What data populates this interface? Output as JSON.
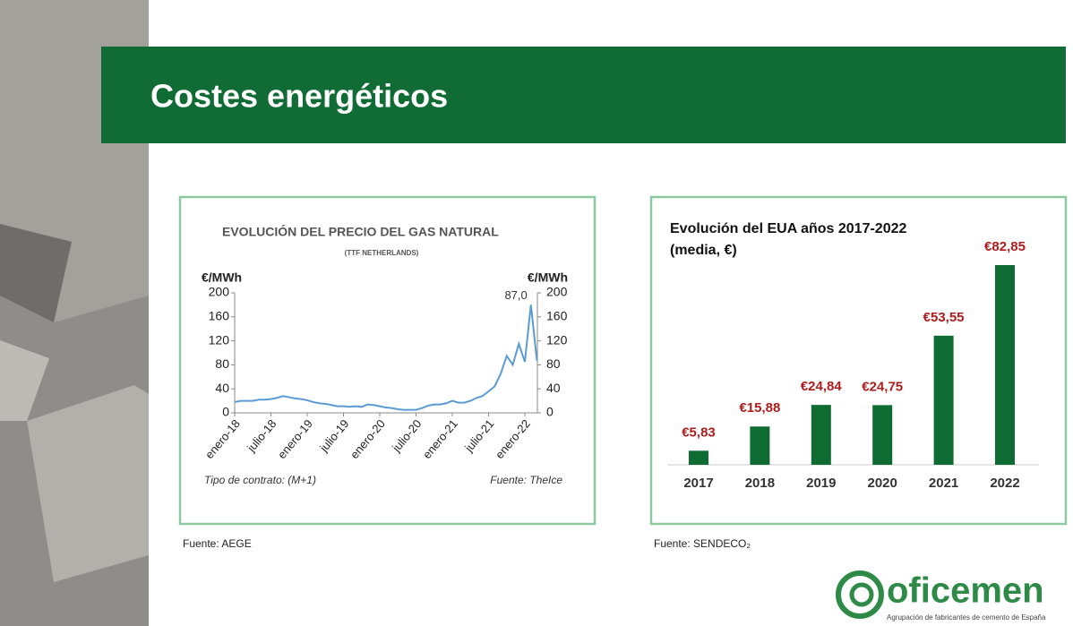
{
  "slide_title": "Costes energéticos",
  "chart_data": [
    {
      "type": "line",
      "title": "EVOLUCIÓN DEL PRECIO DEL GAS NATURAL",
      "subtitle": "(TTF NETHERLANDS)",
      "y_label": "€/MWh",
      "y2_label": "€/MWh",
      "categories": [
        "enero-18",
        null,
        null,
        null,
        null,
        null,
        "julio-18",
        null,
        null,
        null,
        null,
        null,
        "enero-19",
        null,
        null,
        null,
        null,
        null,
        "julio-19",
        null,
        null,
        null,
        null,
        null,
        "enero-20",
        null,
        null,
        null,
        null,
        null,
        "julio-20",
        null,
        null,
        null,
        null,
        null,
        "enero-21",
        null,
        null,
        null,
        null,
        null,
        "julio-21",
        null,
        null,
        null,
        null,
        null,
        "enero-22",
        null,
        null
      ],
      "series": [
        {
          "color": "#5b9bd5",
          "values": [
            18,
            20,
            20,
            20,
            22,
            22,
            23,
            25,
            28,
            26,
            24,
            23,
            21,
            18,
            16,
            15,
            13,
            11,
            11,
            10,
            11,
            10,
            14,
            13,
            11,
            9,
            8,
            6,
            5,
            5,
            5,
            8,
            12,
            14,
            14,
            16,
            20,
            17,
            17,
            20,
            25,
            28,
            36,
            44,
            65,
            95,
            80,
            115,
            85,
            180,
            87
          ]
        }
      ],
      "annotation": "87,0",
      "ylim": [
        0,
        200
      ],
      "yticks": [
        0,
        40,
        80,
        120,
        160,
        200
      ],
      "y2lim": [
        0,
        200
      ],
      "y2ticks": [
        0,
        40,
        80,
        120,
        160,
        200
      ],
      "note_left": "Tipo de contrato: (M+1)",
      "note_right": "Fuente: TheIce",
      "source": "Fuente: AEGE"
    },
    {
      "type": "bar",
      "title": "Evolución del EUA años 2017-2022",
      "subtitle": "(media, €)",
      "categories": [
        "2017",
        "2018",
        "2019",
        "2020",
        "2021",
        "2022"
      ],
      "values": [
        5.83,
        15.88,
        24.84,
        24.75,
        53.55,
        82.85
      ],
      "value_labels": [
        "€5,83",
        "€15,88",
        "€24,84",
        "€24,75",
        "€53,55",
        "€82,85"
      ],
      "color": "#0e6b32",
      "label_color": "#b01c1c",
      "source": "Fuente: SENDECO₂"
    }
  ],
  "logo": {
    "name": "oficemen",
    "tagline": "Agrupación de fabricantes de cemento de España"
  }
}
